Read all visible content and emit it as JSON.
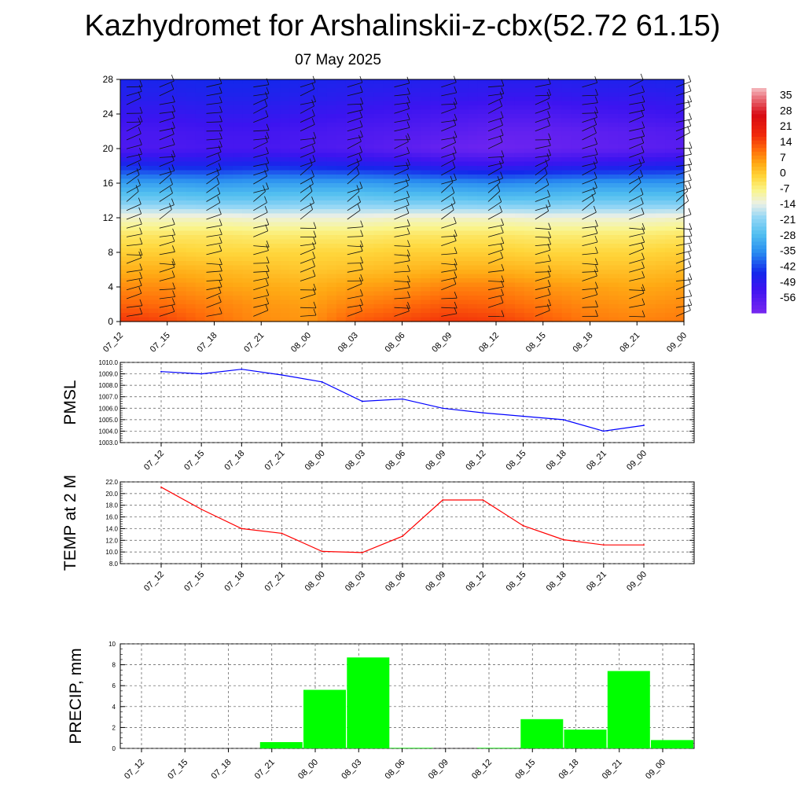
{
  "title": "Kazhydromet for Arshalinskii-z-cbx(52.72 61.15)",
  "date": "07 May 2025",
  "time_labels": [
    "07_12",
    "07_15",
    "07_18",
    "07_21",
    "08_00",
    "08_03",
    "08_06",
    "08_09",
    "08_12",
    "08_15",
    "08_18",
    "08_21",
    "09_00"
  ],
  "chart_data": [
    {
      "type": "heatmap",
      "title": "",
      "ylabel": "",
      "ylim": [
        0,
        28
      ],
      "yticks": [
        0,
        4,
        8,
        12,
        16,
        20,
        24,
        28
      ],
      "x": [
        "07_12",
        "07_15",
        "07_18",
        "07_21",
        "08_00",
        "08_03",
        "08_06",
        "08_09",
        "08_12",
        "08_15",
        "08_18",
        "08_21",
        "09_00"
      ],
      "y_levels": [
        0,
        2,
        4,
        6,
        8,
        10,
        12,
        14,
        16,
        18,
        20,
        22,
        24,
        26,
        28
      ],
      "z": [
        [
          16,
          14,
          10,
          7,
          6,
          12,
          14,
          16,
          15,
          12,
          9,
          8,
          9
        ],
        [
          11,
          10,
          8,
          6,
          5,
          8,
          10,
          12,
          11,
          9,
          7,
          6,
          7
        ],
        [
          7,
          7,
          5,
          4,
          3,
          5,
          6,
          8,
          8,
          6,
          5,
          4,
          5
        ],
        [
          3,
          3,
          2,
          1,
          0,
          1,
          2,
          3,
          3,
          2,
          1,
          1,
          2
        ],
        [
          -1,
          -1,
          -2,
          -2,
          -2,
          -2,
          -1,
          -1,
          -1,
          -2,
          -2,
          -2,
          -1
        ],
        [
          -5,
          -5,
          -5,
          -6,
          -6,
          -6,
          -5,
          -5,
          -5,
          -6,
          -6,
          -6,
          -5
        ],
        [
          -12,
          -12,
          -12,
          -13,
          -13,
          -13,
          -12,
          -12,
          -12,
          -13,
          -13,
          -13,
          -12
        ],
        [
          -24,
          -24,
          -25,
          -25,
          -24,
          -24,
          -25,
          -25,
          -26,
          -26,
          -25,
          -25,
          -25
        ],
        [
          -33,
          -33,
          -34,
          -33,
          -33,
          -33,
          -34,
          -35,
          -36,
          -35,
          -34,
          -34,
          -34
        ],
        [
          -45,
          -46,
          -46,
          -45,
          -46,
          -47,
          -48,
          -50,
          -51,
          -50,
          -49,
          -48,
          -47
        ],
        [
          -55,
          -55,
          -54,
          -54,
          -55,
          -56,
          -58,
          -60,
          -61,
          -60,
          -59,
          -58,
          -57
        ],
        [
          -54,
          -54,
          -53,
          -53,
          -54,
          -55,
          -56,
          -57,
          -59,
          -59,
          -58,
          -57,
          -56
        ],
        [
          -51,
          -51,
          -50,
          -50,
          -51,
          -52,
          -53,
          -54,
          -55,
          -55,
          -54,
          -53,
          -52
        ],
        [
          -48,
          -48,
          -47,
          -47,
          -48,
          -49,
          -50,
          -50,
          -51,
          -51,
          -50,
          -50,
          -49
        ],
        [
          -46,
          -46,
          -45,
          -45,
          -46,
          -47,
          -47,
          -48,
          -48,
          -48,
          -47,
          -47,
          -46
        ]
      ],
      "colorbar": {
        "ticks": [
          35,
          28,
          21,
          14,
          7,
          0,
          -7,
          -14,
          -21,
          -28,
          -35,
          -42,
          -49,
          -56
        ],
        "range": [
          -63,
          38
        ]
      },
      "overlay": "wind barbs"
    },
    {
      "type": "line",
      "ylabel": "PMSL",
      "ylim": [
        1003.0,
        1010.0
      ],
      "yticks": [
        "1003.0",
        "1004.0",
        "1005.0",
        "1006.0",
        "1007.0",
        "1008.0",
        "1009.0",
        "1010.0"
      ],
      "x": [
        "07_12",
        "07_15",
        "07_18",
        "07_21",
        "08_00",
        "08_03",
        "08_06",
        "08_09",
        "08_12",
        "08_15",
        "08_18",
        "08_21",
        "09_00"
      ],
      "series": [
        {
          "color": "#0000ff",
          "values": [
            1009.2,
            1009.0,
            1009.4,
            1008.9,
            1008.3,
            1006.6,
            1006.8,
            1006.0,
            1005.6,
            1005.3,
            1005.0,
            1004.0,
            1004.5
          ]
        }
      ],
      "grid": true
    },
    {
      "type": "line",
      "ylabel": "TEMP at 2 M",
      "ylim": [
        8.0,
        22.0
      ],
      "yticks": [
        "8.0",
        "10.0",
        "12.0",
        "14.0",
        "16.0",
        "18.0",
        "20.0",
        "22.0"
      ],
      "x": [
        "07_12",
        "07_15",
        "07_18",
        "07_21",
        "08_00",
        "08_03",
        "08_06",
        "08_09",
        "08_12",
        "08_15",
        "08_18",
        "08_21",
        "09_00"
      ],
      "series": [
        {
          "color": "#ff0000",
          "values": [
            21.1,
            17.3,
            14.0,
            13.2,
            10.1,
            9.9,
            12.7,
            18.9,
            18.9,
            14.5,
            12.1,
            11.2,
            11.2
          ]
        }
      ],
      "grid": true
    },
    {
      "type": "bar",
      "ylabel": "PRECIP, mm",
      "ylim": [
        0,
        10
      ],
      "yticks": [
        "0",
        "2",
        "4",
        "6",
        "8",
        "10"
      ],
      "categories": [
        "07_12",
        "07_15",
        "07_18",
        "07_21",
        "08_00",
        "08_03",
        "08_06",
        "08_09",
        "08_12",
        "08_15",
        "08_18",
        "08_21",
        "09_00"
      ],
      "values": [
        0.0,
        0.0,
        0.0,
        0.6,
        5.6,
        8.7,
        0.05,
        0.0,
        0.05,
        2.8,
        1.8,
        7.4,
        0.8
      ],
      "bar_color": "#00ff00",
      "grid": true
    }
  ]
}
